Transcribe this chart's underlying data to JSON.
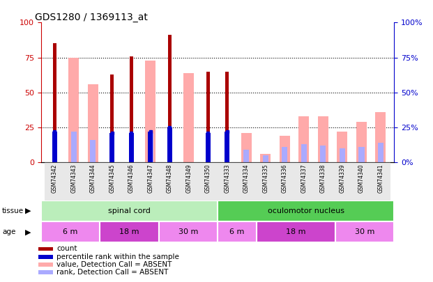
{
  "title": "GDS1280 / 1369113_at",
  "samples": [
    "GSM74342",
    "GSM74343",
    "GSM74344",
    "GSM74345",
    "GSM74346",
    "GSM74347",
    "GSM74348",
    "GSM74349",
    "GSM74350",
    "GSM74333",
    "GSM74334",
    "GSM74335",
    "GSM74336",
    "GSM74337",
    "GSM74338",
    "GSM74339",
    "GSM74340",
    "GSM74341"
  ],
  "count_values": [
    85,
    0,
    0,
    63,
    76,
    0,
    91,
    0,
    65,
    65,
    0,
    0,
    0,
    0,
    0,
    0,
    0,
    0
  ],
  "percentile_values": [
    22,
    0,
    0,
    21,
    21,
    22,
    25,
    0,
    21,
    22,
    0,
    0,
    0,
    0,
    0,
    0,
    0,
    0
  ],
  "value_absent": [
    0,
    75,
    56,
    0,
    0,
    73,
    0,
    64,
    0,
    0,
    21,
    6,
    19,
    33,
    33,
    22,
    29,
    36
  ],
  "rank_absent": [
    0,
    22,
    16,
    0,
    0,
    21,
    0,
    0,
    0,
    0,
    9,
    5,
    11,
    13,
    12,
    10,
    11,
    14
  ],
  "count_color": "#aa0000",
  "percentile_color": "#0000cc",
  "value_absent_color": "#ffaaaa",
  "rank_absent_color": "#aaaaff",
  "ylim": [
    0,
    100
  ],
  "yticks": [
    0,
    25,
    50,
    75,
    100
  ],
  "tissue_groups": [
    {
      "label": "spinal cord",
      "start": 0,
      "end": 9,
      "color": "#bbeebb"
    },
    {
      "label": "oculomotor nucleus",
      "start": 9,
      "end": 18,
      "color": "#55cc55"
    }
  ],
  "age_groups": [
    {
      "label": "6 m",
      "start": 0,
      "end": 3,
      "color": "#ee88ee"
    },
    {
      "label": "18 m",
      "start": 3,
      "end": 6,
      "color": "#cc44cc"
    },
    {
      "label": "30 m",
      "start": 6,
      "end": 9,
      "color": "#ee88ee"
    },
    {
      "label": "6 m",
      "start": 9,
      "end": 11,
      "color": "#ee88ee"
    },
    {
      "label": "18 m",
      "start": 11,
      "end": 15,
      "color": "#cc44cc"
    },
    {
      "label": "30 m",
      "start": 15,
      "end": 18,
      "color": "#ee88ee"
    }
  ],
  "legend_items": [
    {
      "label": "count",
      "color": "#aa0000"
    },
    {
      "label": "percentile rank within the sample",
      "color": "#0000cc"
    },
    {
      "label": "value, Detection Call = ABSENT",
      "color": "#ffaaaa"
    },
    {
      "label": "rank, Detection Call = ABSENT",
      "color": "#aaaaff"
    }
  ],
  "thin_bar_width": 0.18,
  "wide_bar_width": 0.55,
  "bg_color": "#f0f0f0"
}
